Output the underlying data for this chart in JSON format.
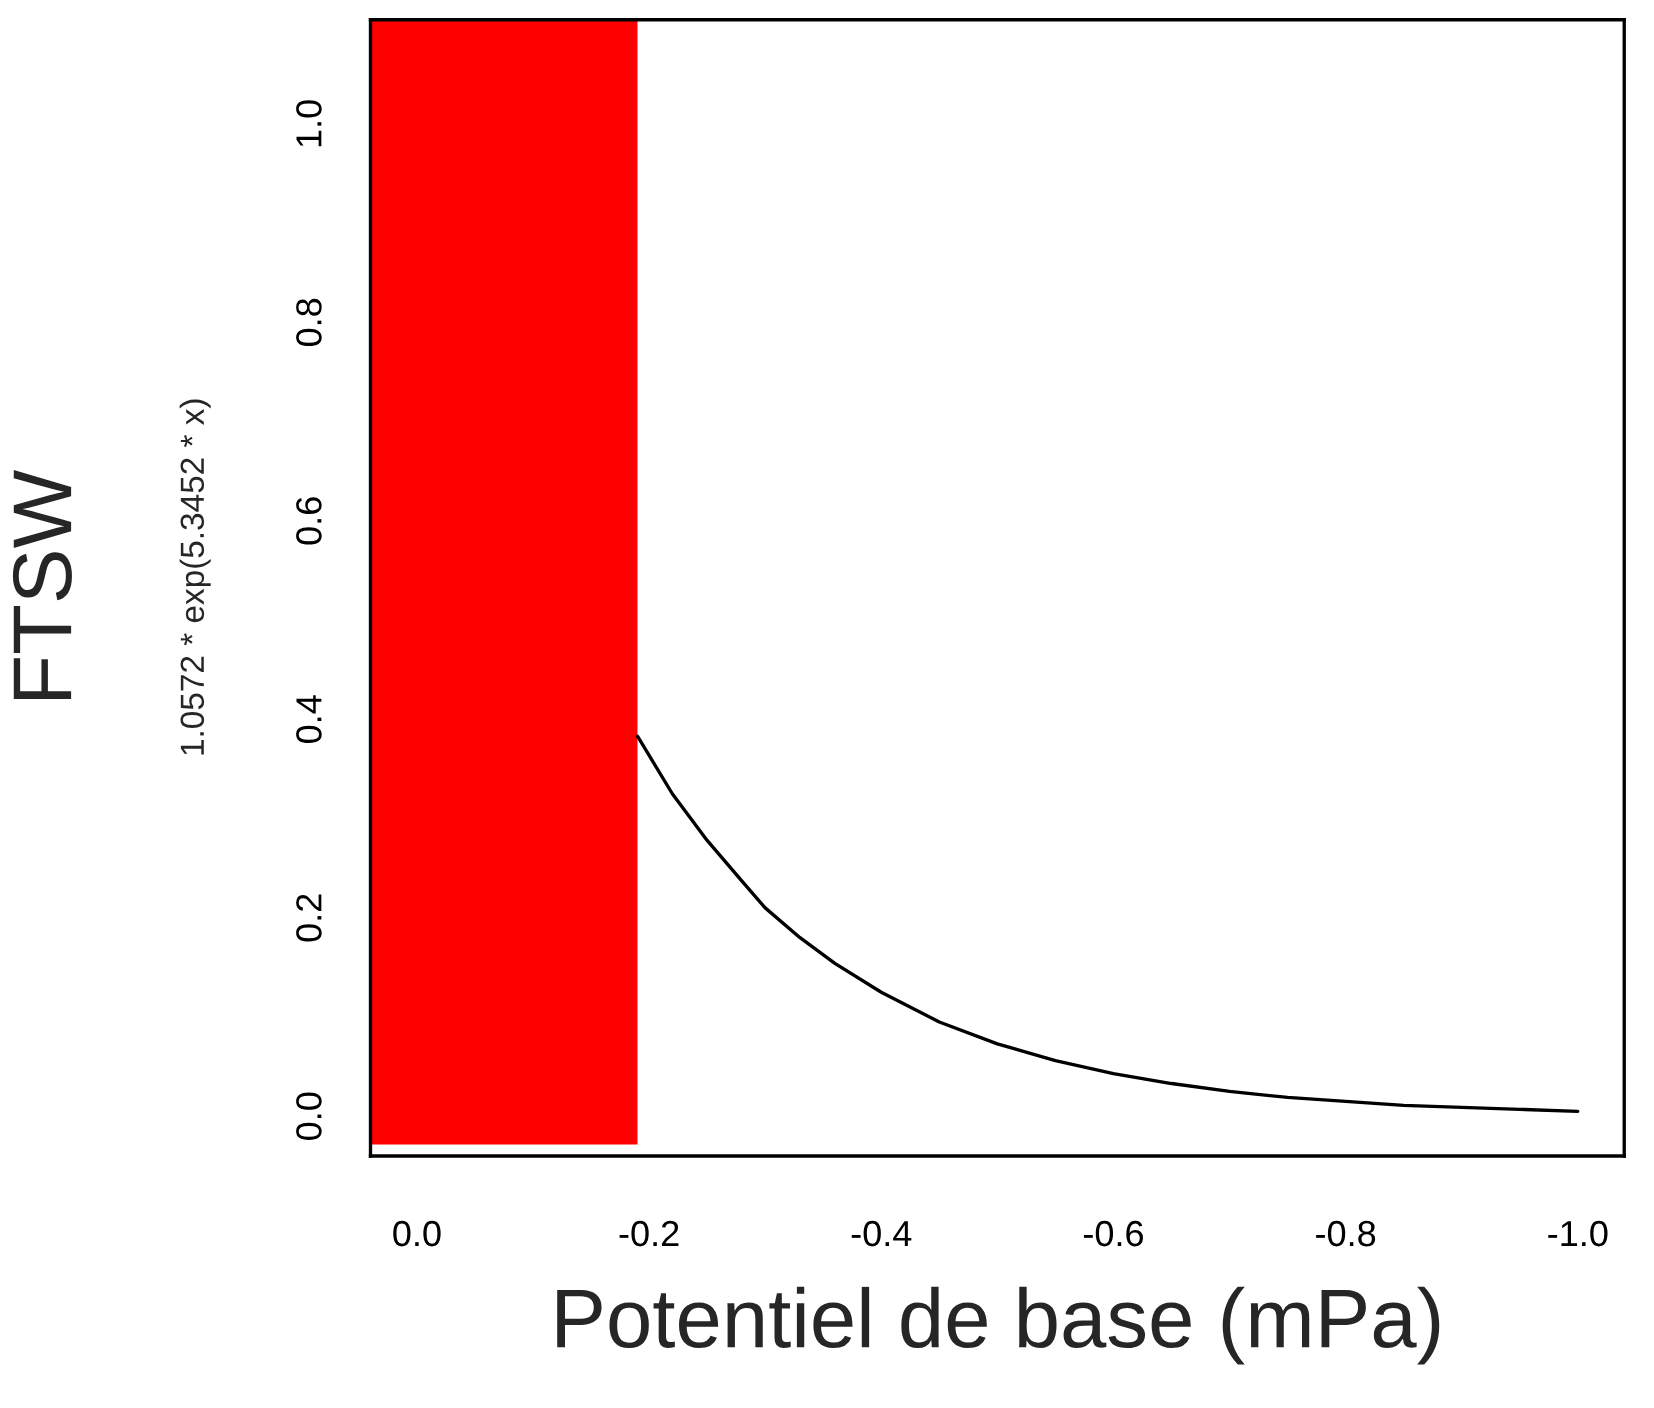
{
  "chart_data": {
    "type": "line",
    "xlabel": "Potentiel de base (mPa)",
    "ylabel": "FTSW",
    "annotations": [
      "1.0572 * exp(5.3452 * x)"
    ],
    "series": [
      {
        "color": "#000000",
        "x": [
          -0.19,
          -0.22,
          -0.25,
          -0.28,
          -0.3,
          -0.33,
          -0.36,
          -0.4,
          -0.45,
          -0.5,
          -0.55,
          -0.6,
          -0.65,
          -0.7,
          -0.75,
          -0.8,
          -0.85,
          -0.9,
          -0.95,
          -1.0
        ],
        "values": [
          0.383,
          0.325,
          0.278,
          0.237,
          0.21,
          0.18,
          0.154,
          0.125,
          0.095,
          0.073,
          0.056,
          0.043,
          0.033,
          0.025,
          0.019,
          0.015,
          0.011,
          0.009,
          0.007,
          0.005
        ]
      }
    ],
    "bands": [
      {
        "axis": "x",
        "from": 0.04,
        "to": -0.19,
        "color": "#ff0000"
      }
    ],
    "xlim": [
      0.04,
      -1.04
    ],
    "ylim": [
      -0.04,
      1.105
    ],
    "xticks": [
      {
        "value": 0,
        "label": "0.0"
      },
      {
        "value": -0.2,
        "label": "-0.2"
      },
      {
        "value": -0.4,
        "label": "-0.4"
      },
      {
        "value": -0.6,
        "label": "-0.6"
      },
      {
        "value": -0.8,
        "label": "-0.8"
      },
      {
        "value": -1.0,
        "label": "-1.0"
      }
    ],
    "yticks": [
      {
        "value": 0,
        "label": "0.0"
      },
      {
        "value": 0.2,
        "label": "0.2"
      },
      {
        "value": 0.4,
        "label": "0.4"
      },
      {
        "value": 0.6,
        "label": "0.6"
      },
      {
        "value": 0.8,
        "label": "0.8"
      },
      {
        "value": 1.0,
        "label": "1.0"
      }
    ],
    "grid": false,
    "legend": false,
    "marker": "none",
    "line_style": "solid"
  }
}
